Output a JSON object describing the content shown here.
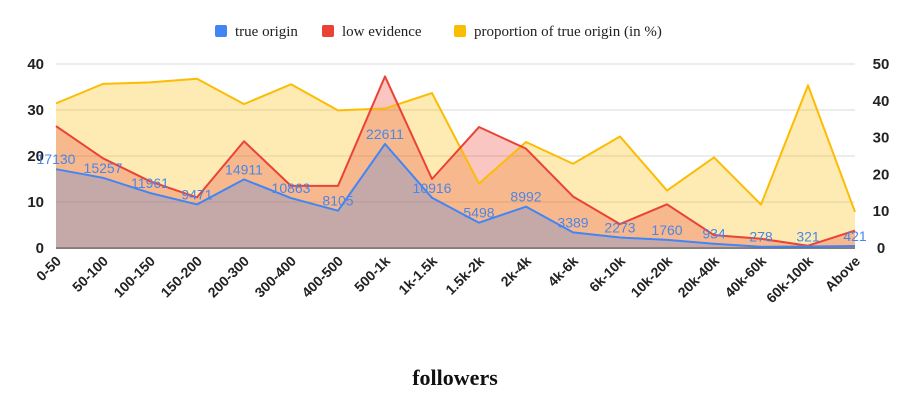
{
  "chart_data": {
    "type": "area",
    "xlabel": "followers",
    "categories": [
      "0-50",
      "50-100",
      "100-150",
      "150-200",
      "200-300",
      "300-400",
      "400-500",
      "500-1k",
      "1k-1.5k",
      "1.5k-2k",
      "2k-4k",
      "4k-6k",
      "6k-10k",
      "10k-20k",
      "20k-40k",
      "40k-60k",
      "60k-100k",
      "Above"
    ],
    "left_ylim": [
      0,
      40
    ],
    "left_yticks": [
      "0",
      "10",
      "20",
      "30",
      "40"
    ],
    "right_ylim": [
      0,
      50
    ],
    "right_yticks": [
      "0",
      "10",
      "20",
      "30",
      "40",
      "50"
    ],
    "series": [
      {
        "name": "true origin",
        "axis": "left",
        "color": "#4285f4",
        "values": [
          17.13,
          15.257,
          11.961,
          9.471,
          14.911,
          10.863,
          8.105,
          22.611,
          10.916,
          5.498,
          8.992,
          3.389,
          2.273,
          1.76,
          0.934,
          0.278,
          0.321,
          0.421
        ],
        "labels": [
          "17130",
          "15257",
          "11961",
          "9471",
          "14911",
          "10863",
          "8105",
          "22611",
          "10916",
          "5498",
          "8992",
          "3389",
          "2273",
          "1760",
          "934",
          "278",
          "321",
          "421"
        ]
      },
      {
        "name": "low evidence",
        "axis": "left",
        "color": "#ea4335",
        "values": [
          26.5,
          19.5,
          14.5,
          11.0,
          23.2,
          13.5,
          13.5,
          37.3,
          15.0,
          26.3,
          21.6,
          11.2,
          5.2,
          9.5,
          2.8,
          2.0,
          0.5,
          3.8
        ]
      },
      {
        "name": "proportion of true origin (in %)",
        "axis": "right",
        "color": "#fbbc04",
        "values": [
          39.3,
          44.6,
          45.0,
          46.0,
          39.1,
          44.5,
          37.4,
          37.9,
          42.1,
          17.5,
          28.8,
          22.9,
          30.3,
          15.6,
          24.6,
          11.8,
          44.2,
          9.8
        ]
      }
    ]
  }
}
